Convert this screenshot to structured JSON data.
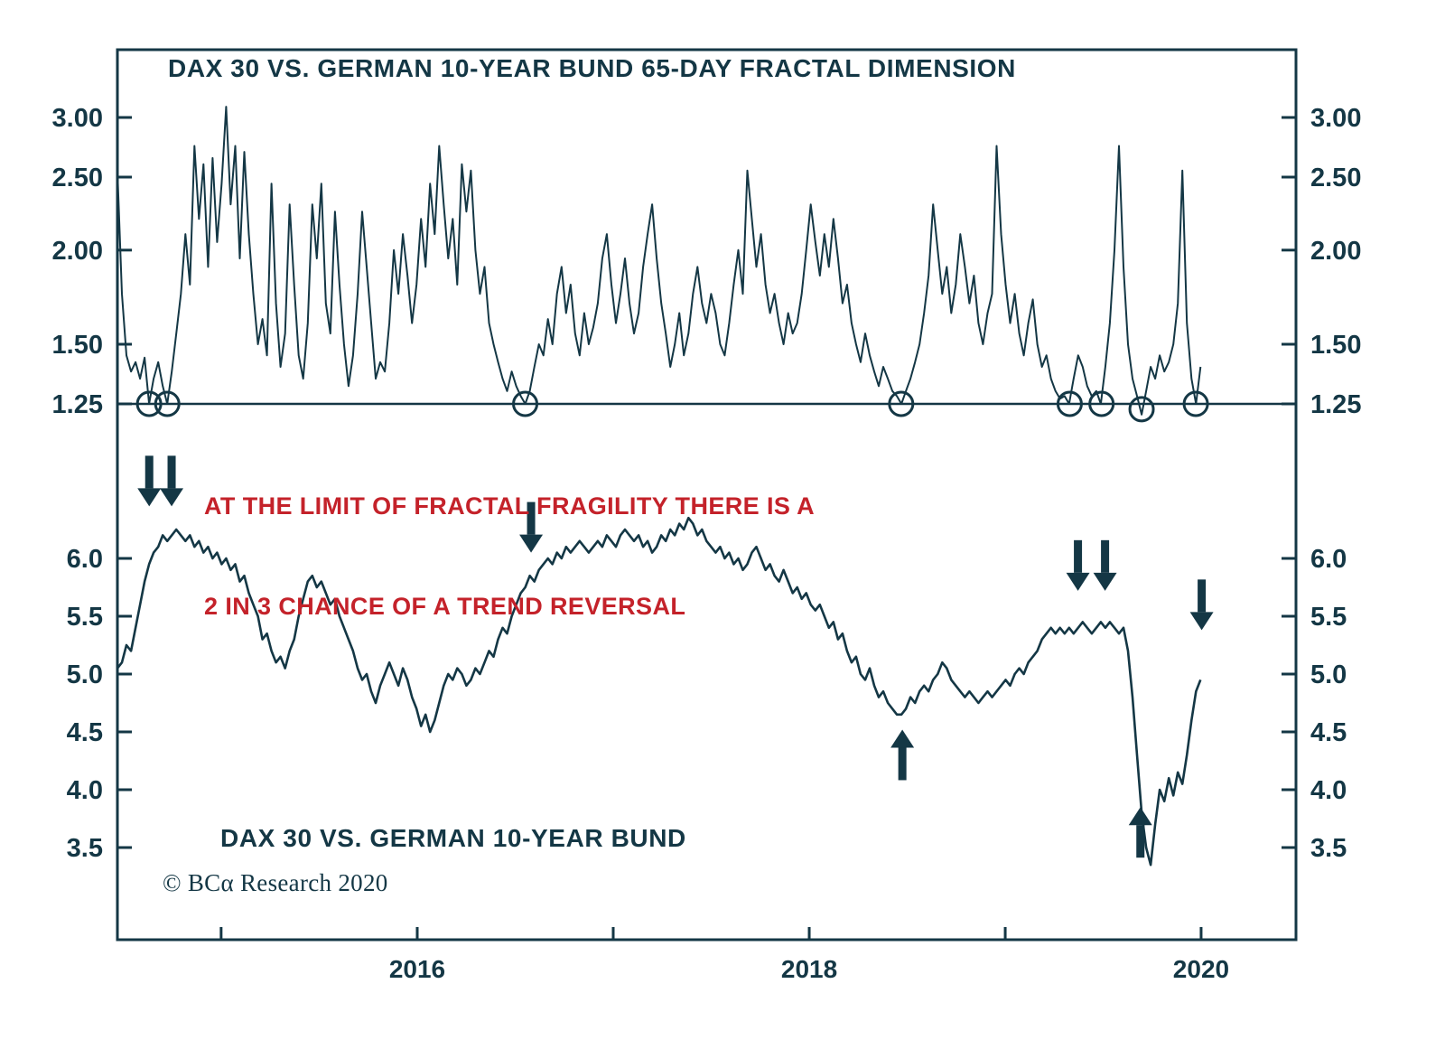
{
  "colors": {
    "ink": "#143745",
    "accent_red": "#c4222a",
    "background": "#ffffff"
  },
  "annotation": {
    "line1": "AT THE LIMIT OF FRACTAL FRAGILITY THERE IS A",
    "line2": "2 IN 3 CHANCE OF A TREND REVERSAL"
  },
  "footer": {
    "copyright": "© BCα Research 2020"
  },
  "chart_data": [
    {
      "type": "line",
      "panel": "top",
      "title": "DAX 30 VS. GERMAN 10-YEAR BUND 65-DAY FRACTAL DIMENSION",
      "scale": "log",
      "ylim": [
        1.18,
        3.35
      ],
      "grid": false,
      "legend": "none",
      "y_ticks": [
        {
          "v": 3.0,
          "label": "3.00"
        },
        {
          "v": 2.5,
          "label": "2.50"
        },
        {
          "v": 2.0,
          "label": "2.00"
        },
        {
          "v": 1.5,
          "label": "1.50"
        },
        {
          "v": 1.25,
          "label": "1.25"
        }
      ],
      "threshold_value": 1.25,
      "threshold_touches": [
        {
          "f": 0.0269,
          "v": 1.25
        },
        {
          "f": 0.0423,
          "v": 1.25
        },
        {
          "f": 0.346,
          "v": 1.25
        },
        {
          "f": 0.665,
          "v": 1.25
        },
        {
          "f": 0.808,
          "v": 1.25
        },
        {
          "f": 0.835,
          "v": 1.25
        },
        {
          "f": 0.869,
          "v": 1.23
        },
        {
          "f": 0.915,
          "v": 1.25
        }
      ],
      "x_span": 0.919,
      "values": [
        2.55,
        1.75,
        1.45,
        1.38,
        1.42,
        1.35,
        1.44,
        1.25,
        1.35,
        1.42,
        1.32,
        1.25,
        1.38,
        1.55,
        1.75,
        2.1,
        1.8,
        2.75,
        2.2,
        2.6,
        1.9,
        2.65,
        2.05,
        2.45,
        3.1,
        2.3,
        2.75,
        1.95,
        2.7,
        2.1,
        1.75,
        1.5,
        1.62,
        1.45,
        2.45,
        1.7,
        1.4,
        1.55,
        2.3,
        1.8,
        1.45,
        1.35,
        1.6,
        2.3,
        1.95,
        2.45,
        1.7,
        1.55,
        2.25,
        1.8,
        1.5,
        1.32,
        1.45,
        1.75,
        2.25,
        1.9,
        1.6,
        1.35,
        1.42,
        1.38,
        1.6,
        2.0,
        1.75,
        2.1,
        1.85,
        1.6,
        1.8,
        2.2,
        1.9,
        2.45,
        2.1,
        2.75,
        2.3,
        1.95,
        2.2,
        1.8,
        2.6,
        2.25,
        2.55,
        2.0,
        1.75,
        1.9,
        1.6,
        1.5,
        1.42,
        1.35,
        1.3,
        1.38,
        1.32,
        1.28,
        1.25,
        1.3,
        1.4,
        1.5,
        1.45,
        1.62,
        1.5,
        1.75,
        1.9,
        1.65,
        1.8,
        1.55,
        1.45,
        1.65,
        1.5,
        1.58,
        1.7,
        1.95,
        2.1,
        1.8,
        1.6,
        1.75,
        1.95,
        1.7,
        1.55,
        1.65,
        1.9,
        2.1,
        2.3,
        1.95,
        1.7,
        1.55,
        1.4,
        1.5,
        1.65,
        1.45,
        1.55,
        1.75,
        1.9,
        1.7,
        1.6,
        1.75,
        1.65,
        1.5,
        1.45,
        1.6,
        1.8,
        2.0,
        1.75,
        2.55,
        2.2,
        1.9,
        2.1,
        1.8,
        1.65,
        1.75,
        1.6,
        1.5,
        1.65,
        1.55,
        1.6,
        1.75,
        2.0,
        2.3,
        2.05,
        1.85,
        2.1,
        1.9,
        2.2,
        1.95,
        1.7,
        1.8,
        1.6,
        1.5,
        1.42,
        1.55,
        1.45,
        1.38,
        1.32,
        1.4,
        1.35,
        1.3,
        1.28,
        1.25,
        1.3,
        1.35,
        1.42,
        1.5,
        1.65,
        1.85,
        2.3,
        2.0,
        1.75,
        1.9,
        1.65,
        1.8,
        2.1,
        1.9,
        1.7,
        1.85,
        1.6,
        1.5,
        1.65,
        1.75,
        2.75,
        2.1,
        1.8,
        1.6,
        1.75,
        1.55,
        1.45,
        1.6,
        1.72,
        1.5,
        1.4,
        1.45,
        1.35,
        1.3,
        1.27,
        1.28,
        1.25,
        1.35,
        1.45,
        1.4,
        1.32,
        1.28,
        1.3,
        1.25,
        1.4,
        1.6,
        2.0,
        2.75,
        1.9,
        1.5,
        1.35,
        1.28,
        1.21,
        1.3,
        1.4,
        1.35,
        1.45,
        1.38,
        1.42,
        1.5,
        1.7,
        2.55,
        1.6,
        1.35,
        1.25,
        1.4
      ]
    },
    {
      "type": "line",
      "panel": "bottom",
      "title": "DAX 30 VS. GERMAN 10-YEAR BUND",
      "scale": "linear",
      "ylim": [
        3.2,
        6.6
      ],
      "grid": false,
      "legend": "none",
      "y_ticks": [
        {
          "v": 6.0,
          "label": "6.0"
        },
        {
          "v": 5.5,
          "label": "5.5"
        },
        {
          "v": 5.0,
          "label": "5.0"
        },
        {
          "v": 4.5,
          "label": "4.5"
        },
        {
          "v": 4.0,
          "label": "4.0"
        },
        {
          "v": 3.5,
          "label": "3.5"
        }
      ],
      "x_span": 0.919,
      "values": [
        5.05,
        5.1,
        5.25,
        5.2,
        5.4,
        5.6,
        5.8,
        5.95,
        6.05,
        6.1,
        6.2,
        6.15,
        6.2,
        6.25,
        6.2,
        6.15,
        6.2,
        6.1,
        6.15,
        6.05,
        6.1,
        6.0,
        6.05,
        5.95,
        6.0,
        5.9,
        5.95,
        5.8,
        5.85,
        5.7,
        5.6,
        5.5,
        5.3,
        5.35,
        5.2,
        5.1,
        5.15,
        5.05,
        5.2,
        5.3,
        5.5,
        5.65,
        5.8,
        5.85,
        5.75,
        5.8,
        5.7,
        5.6,
        5.65,
        5.5,
        5.4,
        5.3,
        5.2,
        5.05,
        4.95,
        5.0,
        4.85,
        4.75,
        4.9,
        5.0,
        5.1,
        5.0,
        4.9,
        5.05,
        4.95,
        4.8,
        4.7,
        4.55,
        4.65,
        4.5,
        4.6,
        4.75,
        4.9,
        5.0,
        4.95,
        5.05,
        5.0,
        4.9,
        4.95,
        5.05,
        5.0,
        5.1,
        5.2,
        5.15,
        5.3,
        5.4,
        5.35,
        5.5,
        5.6,
        5.7,
        5.75,
        5.85,
        5.8,
        5.9,
        5.95,
        6.0,
        5.95,
        6.05,
        6.0,
        6.1,
        6.05,
        6.1,
        6.15,
        6.1,
        6.05,
        6.1,
        6.15,
        6.1,
        6.2,
        6.15,
        6.1,
        6.2,
        6.25,
        6.2,
        6.15,
        6.2,
        6.1,
        6.15,
        6.05,
        6.1,
        6.2,
        6.15,
        6.25,
        6.2,
        6.3,
        6.25,
        6.35,
        6.3,
        6.2,
        6.25,
        6.15,
        6.1,
        6.05,
        6.1,
        6.0,
        6.05,
        5.95,
        6.0,
        5.9,
        5.95,
        6.05,
        6.1,
        6.0,
        5.9,
        5.95,
        5.85,
        5.8,
        5.9,
        5.8,
        5.7,
        5.75,
        5.65,
        5.7,
        5.6,
        5.55,
        5.6,
        5.5,
        5.4,
        5.45,
        5.3,
        5.35,
        5.2,
        5.1,
        5.15,
        5.0,
        4.95,
        5.05,
        4.9,
        4.8,
        4.85,
        4.75,
        4.7,
        4.65,
        4.65,
        4.7,
        4.8,
        4.75,
        4.85,
        4.9,
        4.85,
        4.95,
        5.0,
        5.1,
        5.05,
        4.95,
        4.9,
        4.85,
        4.8,
        4.85,
        4.8,
        4.75,
        4.8,
        4.85,
        4.8,
        4.85,
        4.9,
        4.95,
        4.9,
        5.0,
        5.05,
        5.0,
        5.1,
        5.15,
        5.2,
        5.3,
        5.35,
        5.4,
        5.35,
        5.4,
        5.35,
        5.4,
        5.35,
        5.4,
        5.45,
        5.4,
        5.35,
        5.4,
        5.45,
        5.4,
        5.45,
        5.4,
        5.35,
        5.4,
        5.2,
        4.8,
        4.3,
        3.8,
        3.5,
        3.35,
        3.7,
        4.0,
        3.9,
        4.1,
        3.95,
        4.15,
        4.05,
        4.3,
        4.6,
        4.85,
        4.95
      ],
      "arrows": [
        {
          "f": 0.027,
          "v": 6.45,
          "dir": "down"
        },
        {
          "f": 0.046,
          "v": 6.45,
          "dir": "down"
        },
        {
          "f": 0.351,
          "v": 6.05,
          "dir": "down"
        },
        {
          "f": 0.815,
          "v": 5.72,
          "dir": "down"
        },
        {
          "f": 0.838,
          "v": 5.72,
          "dir": "down"
        },
        {
          "f": 0.92,
          "v": 5.38,
          "dir": "down"
        },
        {
          "f": 0.666,
          "v": 4.52,
          "dir": "up"
        },
        {
          "f": 0.868,
          "v": 3.85,
          "dir": "up"
        }
      ],
      "x_axis": {
        "major": [
          {
            "f": 0.2544,
            "label": "2016"
          },
          {
            "f": 0.587,
            "label": "2018"
          },
          {
            "f": 0.9195,
            "label": "2020"
          }
        ],
        "minor_f": [
          0.088,
          0.4207,
          0.7533
        ]
      }
    }
  ]
}
